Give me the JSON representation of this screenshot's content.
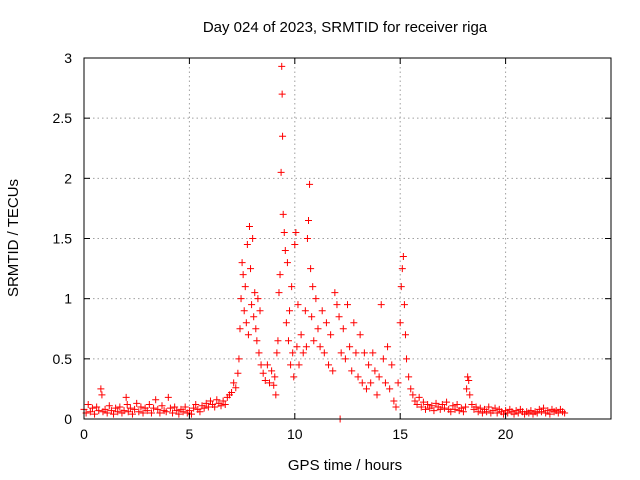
{
  "chart_data": {
    "type": "scatter",
    "title": "Day 024 of 2023, SRMTID for receiver riga",
    "xlabel": "GPS time / hours",
    "ylabel": "SRMTID / TECUs",
    "xlim": [
      0,
      25
    ],
    "ylim": [
      0,
      3
    ],
    "xticks": [
      0,
      5,
      10,
      15,
      20
    ],
    "xtick_labels": [
      "0",
      "5",
      "10",
      "15",
      "20"
    ],
    "yticks": [
      0,
      0.5,
      1,
      1.5,
      2,
      2.5,
      3
    ],
    "ytick_labels": [
      "0",
      "0.5",
      "1",
      "1.5",
      "2",
      "2.5",
      "3"
    ],
    "grid": true,
    "marker": "+",
    "color": "#ff0000",
    "series": [
      {
        "name": "SRMTID",
        "points": [
          [
            0.0,
            0.08
          ],
          [
            0.1,
            0.05
          ],
          [
            0.2,
            0.12
          ],
          [
            0.3,
            0.06
          ],
          [
            0.4,
            0.09
          ],
          [
            0.5,
            0.04
          ],
          [
            0.6,
            0.1
          ],
          [
            0.7,
            0.07
          ],
          [
            0.8,
            0.25
          ],
          [
            0.85,
            0.2
          ],
          [
            0.9,
            0.06
          ],
          [
            1.0,
            0.08
          ],
          [
            1.1,
            0.05
          ],
          [
            1.2,
            0.11
          ],
          [
            1.3,
            0.07
          ],
          [
            1.4,
            0.04
          ],
          [
            1.5,
            0.09
          ],
          [
            1.6,
            0.06
          ],
          [
            1.7,
            0.1
          ],
          [
            1.8,
            0.05
          ],
          [
            1.9,
            0.07
          ],
          [
            2.0,
            0.18
          ],
          [
            2.05,
            0.12
          ],
          [
            2.1,
            0.06
          ],
          [
            2.2,
            0.09
          ],
          [
            2.3,
            0.04
          ],
          [
            2.4,
            0.08
          ],
          [
            2.5,
            0.13
          ],
          [
            2.6,
            0.06
          ],
          [
            2.7,
            0.1
          ],
          [
            2.8,
            0.05
          ],
          [
            2.9,
            0.09
          ],
          [
            3.0,
            0.07
          ],
          [
            3.1,
            0.12
          ],
          [
            3.2,
            0.05
          ],
          [
            3.3,
            0.09
          ],
          [
            3.4,
            0.16
          ],
          [
            3.5,
            0.08
          ],
          [
            3.6,
            0.05
          ],
          [
            3.7,
            0.11
          ],
          [
            3.8,
            0.07
          ],
          [
            3.9,
            0.06
          ],
          [
            4.0,
            0.18
          ],
          [
            4.1,
            0.09
          ],
          [
            4.2,
            0.05
          ],
          [
            4.3,
            0.1
          ],
          [
            4.4,
            0.07
          ],
          [
            4.5,
            0.04
          ],
          [
            4.6,
            0.08
          ],
          [
            4.7,
            0.06
          ],
          [
            4.8,
            0.1
          ],
          [
            4.9,
            0.05
          ],
          [
            5.0,
            0.07
          ],
          [
            5.1,
            0.04
          ],
          [
            5.2,
            0.09
          ],
          [
            5.3,
            0.12
          ],
          [
            5.4,
            0.08
          ],
          [
            5.5,
            0.06
          ],
          [
            5.6,
            0.11
          ],
          [
            5.7,
            0.09
          ],
          [
            5.8,
            0.13
          ],
          [
            5.9,
            0.1
          ],
          [
            6.0,
            0.15
          ],
          [
            6.1,
            0.12
          ],
          [
            6.2,
            0.1
          ],
          [
            6.3,
            0.16
          ],
          [
            6.4,
            0.13
          ],
          [
            6.5,
            0.11
          ],
          [
            6.6,
            0.15
          ],
          [
            6.7,
            0.12
          ],
          [
            6.8,
            0.18
          ],
          [
            6.9,
            0.2
          ],
          [
            7.0,
            0.22
          ],
          [
            7.1,
            0.3
          ],
          [
            7.2,
            0.26
          ],
          [
            7.3,
            0.38
          ],
          [
            7.35,
            0.5
          ],
          [
            7.4,
            0.75
          ],
          [
            7.45,
            1.0
          ],
          [
            7.5,
            1.3
          ],
          [
            7.55,
            1.2
          ],
          [
            7.6,
            0.9
          ],
          [
            7.65,
            1.1
          ],
          [
            7.7,
            0.8
          ],
          [
            7.75,
            1.45
          ],
          [
            7.8,
            0.7
          ],
          [
            7.85,
            1.6
          ],
          [
            7.9,
            1.25
          ],
          [
            7.95,
            0.95
          ],
          [
            8.0,
            1.5
          ],
          [
            8.05,
            0.85
          ],
          [
            8.1,
            1.05
          ],
          [
            8.15,
            0.75
          ],
          [
            8.2,
            0.65
          ],
          [
            8.25,
            1.0
          ],
          [
            8.3,
            0.55
          ],
          [
            8.35,
            0.9
          ],
          [
            8.4,
            0.45
          ],
          [
            8.5,
            0.38
          ],
          [
            8.6,
            0.32
          ],
          [
            8.7,
            0.45
          ],
          [
            8.8,
            0.3
          ],
          [
            8.9,
            0.4
          ],
          [
            9.0,
            0.28
          ],
          [
            9.05,
            0.35
          ],
          [
            9.1,
            0.2
          ],
          [
            9.15,
            0.55
          ],
          [
            9.2,
            0.65
          ],
          [
            9.25,
            1.05
          ],
          [
            9.3,
            1.2
          ],
          [
            9.35,
            2.05
          ],
          [
            9.38,
            2.93
          ],
          [
            9.4,
            2.7
          ],
          [
            9.42,
            2.35
          ],
          [
            9.45,
            1.7
          ],
          [
            9.5,
            1.55
          ],
          [
            9.55,
            1.4
          ],
          [
            9.6,
            0.8
          ],
          [
            9.65,
            1.3
          ],
          [
            9.7,
            0.65
          ],
          [
            9.75,
            0.9
          ],
          [
            9.8,
            0.45
          ],
          [
            9.85,
            1.1
          ],
          [
            9.9,
            0.55
          ],
          [
            9.95,
            0.35
          ],
          [
            10.0,
            1.45
          ],
          [
            10.05,
            1.55
          ],
          [
            10.1,
            0.6
          ],
          [
            10.15,
            0.95
          ],
          [
            10.2,
            0.45
          ],
          [
            10.3,
            0.7
          ],
          [
            10.4,
            0.55
          ],
          [
            10.5,
            0.9
          ],
          [
            10.55,
            0.6
          ],
          [
            10.6,
            1.5
          ],
          [
            10.65,
            1.65
          ],
          [
            10.7,
            1.95
          ],
          [
            10.75,
            1.25
          ],
          [
            10.8,
            0.85
          ],
          [
            10.85,
            1.1
          ],
          [
            10.9,
            0.65
          ],
          [
            11.0,
            1.0
          ],
          [
            11.1,
            0.75
          ],
          [
            11.2,
            0.6
          ],
          [
            11.3,
            0.9
          ],
          [
            11.4,
            0.55
          ],
          [
            11.5,
            0.8
          ],
          [
            11.6,
            0.45
          ],
          [
            11.7,
            0.7
          ],
          [
            11.8,
            0.4
          ],
          [
            11.9,
            1.05
          ],
          [
            12.0,
            0.95
          ],
          [
            12.1,
            0.85
          ],
          [
            12.15,
            0.0
          ],
          [
            12.2,
            0.55
          ],
          [
            12.3,
            0.75
          ],
          [
            12.4,
            0.5
          ],
          [
            12.5,
            0.95
          ],
          [
            12.6,
            0.6
          ],
          [
            12.7,
            0.4
          ],
          [
            12.8,
            0.8
          ],
          [
            12.9,
            0.55
          ],
          [
            13.0,
            0.35
          ],
          [
            13.1,
            0.7
          ],
          [
            13.2,
            0.3
          ],
          [
            13.3,
            0.55
          ],
          [
            13.4,
            0.25
          ],
          [
            13.5,
            0.45
          ],
          [
            13.6,
            0.3
          ],
          [
            13.7,
            0.55
          ],
          [
            13.8,
            0.4
          ],
          [
            13.9,
            0.2
          ],
          [
            14.0,
            0.35
          ],
          [
            14.1,
            0.95
          ],
          [
            14.2,
            0.5
          ],
          [
            14.3,
            0.3
          ],
          [
            14.4,
            0.6
          ],
          [
            14.5,
            0.25
          ],
          [
            14.6,
            0.45
          ],
          [
            14.7,
            0.15
          ],
          [
            14.8,
            0.1
          ],
          [
            14.9,
            0.3
          ],
          [
            15.0,
            0.8
          ],
          [
            15.05,
            1.1
          ],
          [
            15.1,
            1.25
          ],
          [
            15.15,
            1.35
          ],
          [
            15.2,
            0.95
          ],
          [
            15.25,
            0.7
          ],
          [
            15.3,
            0.5
          ],
          [
            15.4,
            0.35
          ],
          [
            15.5,
            0.25
          ],
          [
            15.6,
            0.2
          ],
          [
            15.7,
            0.15
          ],
          [
            15.8,
            0.12
          ],
          [
            15.9,
            0.18
          ],
          [
            16.0,
            0.1
          ],
          [
            16.1,
            0.14
          ],
          [
            16.2,
            0.08
          ],
          [
            16.3,
            0.12
          ],
          [
            16.4,
            0.09
          ],
          [
            16.5,
            0.11
          ],
          [
            16.6,
            0.07
          ],
          [
            16.7,
            0.13
          ],
          [
            16.8,
            0.1
          ],
          [
            16.9,
            0.08
          ],
          [
            17.0,
            0.12
          ],
          [
            17.1,
            0.09
          ],
          [
            17.2,
            0.14
          ],
          [
            17.3,
            0.08
          ],
          [
            17.4,
            0.06
          ],
          [
            17.5,
            0.11
          ],
          [
            17.6,
            0.08
          ],
          [
            17.7,
            0.12
          ],
          [
            17.8,
            0.07
          ],
          [
            17.9,
            0.09
          ],
          [
            18.0,
            0.06
          ],
          [
            18.1,
            0.1
          ],
          [
            18.15,
            0.25
          ],
          [
            18.2,
            0.35
          ],
          [
            18.25,
            0.32
          ],
          [
            18.3,
            0.2
          ],
          [
            18.4,
            0.12
          ],
          [
            18.5,
            0.08
          ],
          [
            18.6,
            0.1
          ],
          [
            18.7,
            0.06
          ],
          [
            18.8,
            0.09
          ],
          [
            18.9,
            0.05
          ],
          [
            19.0,
            0.08
          ],
          [
            19.1,
            0.06
          ],
          [
            19.2,
            0.1
          ],
          [
            19.3,
            0.05
          ],
          [
            19.4,
            0.07
          ],
          [
            19.5,
            0.09
          ],
          [
            19.6,
            0.05
          ],
          [
            19.7,
            0.08
          ],
          [
            19.8,
            0.06
          ],
          [
            19.9,
            0.04
          ],
          [
            20.0,
            0.07
          ],
          [
            20.1,
            0.05
          ],
          [
            20.2,
            0.08
          ],
          [
            20.3,
            0.06
          ],
          [
            20.4,
            0.04
          ],
          [
            20.5,
            0.07
          ],
          [
            20.6,
            0.05
          ],
          [
            20.7,
            0.08
          ],
          [
            20.8,
            0.06
          ],
          [
            20.9,
            0.04
          ],
          [
            21.0,
            0.06
          ],
          [
            21.1,
            0.05
          ],
          [
            21.2,
            0.07
          ],
          [
            21.3,
            0.04
          ],
          [
            21.4,
            0.06
          ],
          [
            21.5,
            0.05
          ],
          [
            21.6,
            0.08
          ],
          [
            21.7,
            0.06
          ],
          [
            21.8,
            0.09
          ],
          [
            21.9,
            0.05
          ],
          [
            22.0,
            0.07
          ],
          [
            22.1,
            0.04
          ],
          [
            22.2,
            0.08
          ],
          [
            22.3,
            0.06
          ],
          [
            22.4,
            0.07
          ],
          [
            22.5,
            0.05
          ],
          [
            22.6,
            0.08
          ],
          [
            22.7,
            0.06
          ],
          [
            22.8,
            0.05
          ]
        ]
      }
    ]
  }
}
